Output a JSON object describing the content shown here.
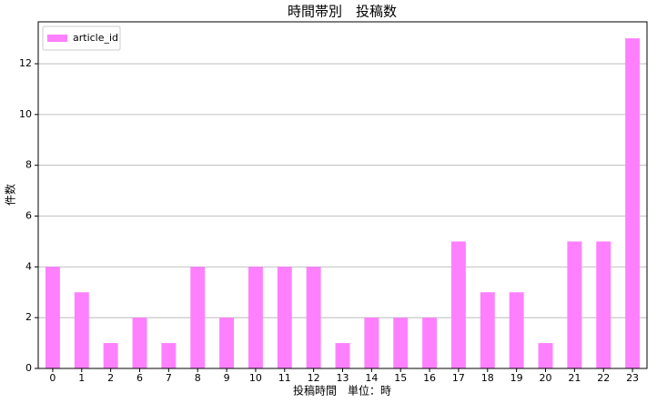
{
  "chart_data": {
    "type": "bar",
    "title": "時間帯別　投稿数",
    "x_label": "投稿時間　単位：時",
    "y_label": "件数",
    "categories": [
      "0",
      "1",
      "2",
      "6",
      "7",
      "8",
      "9",
      "10",
      "11",
      "12",
      "13",
      "14",
      "15",
      "16",
      "17",
      "18",
      "19",
      "20",
      "21",
      "22",
      "23"
    ],
    "series": [
      {
        "name": "article_id",
        "color": "#ff80ff",
        "values": [
          4,
          3,
          1,
          2,
          1,
          4,
          2,
          4,
          4,
          4,
          1,
          2,
          2,
          2,
          5,
          3,
          3,
          1,
          5,
          5,
          13
        ]
      }
    ],
    "ylim": [
      0,
      13.65
    ],
    "yticks": [
      0,
      2,
      4,
      6,
      8,
      10,
      12
    ],
    "grid": true,
    "legend": "upper left"
  }
}
